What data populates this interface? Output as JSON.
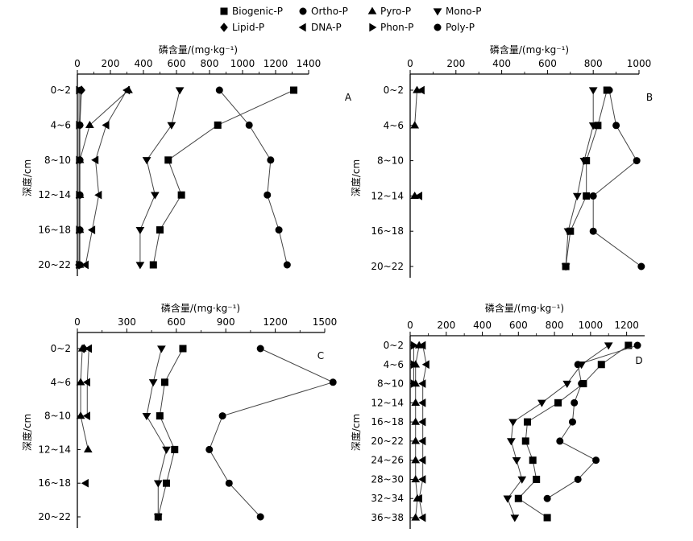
{
  "legend": [
    {
      "name": "Biogenic-P",
      "marker": "square"
    },
    {
      "name": "Ortho-P",
      "marker": "circle"
    },
    {
      "name": "Pyro-P",
      "marker": "triangle-up"
    },
    {
      "name": "Mono-P",
      "marker": "triangle-down"
    },
    {
      "name": "Lipid-P",
      "marker": "diamond"
    },
    {
      "name": "DNA-P",
      "marker": "triangle-left"
    },
    {
      "name": "Phon-P",
      "marker": "triangle-right"
    },
    {
      "name": "Poly-P",
      "marker": "circle"
    }
  ],
  "chart_data": [
    {
      "type": "line",
      "panel": "A",
      "xlabel": "磷含量/(mg·kg⁻¹)",
      "ylabel": "深度/cm",
      "xlim": [
        0,
        1400
      ],
      "xticks": [
        0,
        200,
        400,
        600,
        800,
        1000,
        1200,
        1400
      ],
      "categories": [
        "0~2",
        "4~6",
        "8~10",
        "12~14",
        "16~18",
        "20~22"
      ],
      "series": [
        {
          "name": "Biogenic-P",
          "marker": "square",
          "values": [
            1310,
            850,
            550,
            630,
            500,
            460
          ]
        },
        {
          "name": "Ortho-P",
          "marker": "circle",
          "values": [
            860,
            1040,
            1170,
            1150,
            1220,
            1270
          ]
        },
        {
          "name": "Pyro-P",
          "marker": "triangle-up",
          "values": [
            310,
            75,
            15,
            15,
            15,
            15
          ]
        },
        {
          "name": "Mono-P",
          "marker": "triangle-down",
          "values": [
            620,
            570,
            420,
            470,
            380,
            380
          ]
        },
        {
          "name": "Lipid-P",
          "marker": "diamond",
          "values": [
            25,
            15,
            15,
            15,
            15,
            10
          ]
        },
        {
          "name": "DNA-P",
          "marker": "triangle-left",
          "values": [
            300,
            175,
            110,
            130,
            90,
            50
          ]
        },
        {
          "name": "Phon-P",
          "marker": "triangle-right",
          "values": [
            10,
            10,
            10,
            10,
            10,
            10
          ]
        },
        {
          "name": "Poly-P",
          "marker": "circle",
          "values": [
            20,
            15,
            15,
            15,
            15,
            15
          ]
        }
      ]
    },
    {
      "type": "line",
      "panel": "B",
      "xlabel": "磷含量/(mg·kg⁻¹)",
      "ylabel": "深度/cm",
      "xlim": [
        0,
        1000
      ],
      "xticks": [
        0,
        200,
        400,
        600,
        800,
        1000
      ],
      "categories": [
        "0~2",
        "4~6",
        "8~10",
        "12~14",
        "16~18",
        "20~22"
      ],
      "series": [
        {
          "name": "Biogenic-P",
          "marker": "square",
          "values": [
            860,
            820,
            770,
            770,
            700,
            680
          ]
        },
        {
          "name": "Ortho-P",
          "marker": "circle",
          "values": [
            870,
            900,
            990,
            800,
            800,
            1010
          ]
        },
        {
          "name": "Pyro-P",
          "marker": "triangle-up",
          "values": [
            30,
            20,
            null,
            20,
            null,
            null
          ]
        },
        {
          "name": "Mono-P",
          "marker": "triangle-down",
          "values": [
            800,
            800,
            760,
            730,
            690,
            680
          ]
        },
        {
          "name": "DNA-P",
          "marker": "triangle-left",
          "values": [
            50,
            null,
            null,
            40,
            null,
            null
          ]
        }
      ]
    },
    {
      "type": "line",
      "panel": "C",
      "xlabel": "磷含量/(mg·kg⁻¹)",
      "ylabel": "深度/cm",
      "xlim": [
        0,
        1500
      ],
      "xticks": [
        0,
        300,
        600,
        900,
        1200,
        1500
      ],
      "categories": [
        "0~2",
        "4~6",
        "8~10",
        "12~14",
        "16~18",
        "20~22"
      ],
      "series": [
        {
          "name": "Biogenic-P",
          "marker": "square",
          "values": [
            640,
            530,
            500,
            590,
            540,
            490
          ]
        },
        {
          "name": "Ortho-P",
          "marker": "circle",
          "values": [
            1110,
            1550,
            880,
            800,
            920,
            1110
          ]
        },
        {
          "name": "Pyro-P",
          "marker": "triangle-up",
          "values": [
            30,
            20,
            20,
            65,
            null,
            null
          ]
        },
        {
          "name": "Mono-P",
          "marker": "triangle-down",
          "values": [
            510,
            460,
            420,
            540,
            490,
            490
          ]
        },
        {
          "name": "Lipid-P",
          "marker": "diamond",
          "values": [
            40,
            null,
            null,
            null,
            null,
            null
          ]
        },
        {
          "name": "DNA-P",
          "marker": "triangle-left",
          "values": [
            70,
            60,
            60,
            null,
            50,
            null
          ]
        }
      ]
    },
    {
      "type": "line",
      "panel": "D",
      "xlabel": "磷含量/(mg·kg⁻¹)",
      "ylabel": "深度/cm",
      "xlim": [
        0,
        1300
      ],
      "xticks": [
        0,
        200,
        400,
        600,
        800,
        1000,
        1200
      ],
      "categories": [
        "0~2",
        "4~6",
        "8~10",
        "12~14",
        "16~18",
        "20~22",
        "24~26",
        "28~30",
        "32~34",
        "36~38"
      ],
      "series": [
        {
          "name": "Biogenic-P",
          "marker": "square",
          "values": [
            1210,
            1060,
            960,
            820,
            650,
            640,
            680,
            700,
            600,
            760
          ]
        },
        {
          "name": "Ortho-P",
          "marker": "circle",
          "values": [
            1260,
            930,
            950,
            910,
            900,
            830,
            1030,
            930,
            760,
            null
          ]
        },
        {
          "name": "Pyro-P",
          "marker": "triangle-up",
          "values": [
            50,
            30,
            30,
            30,
            30,
            30,
            30,
            30,
            40,
            30
          ]
        },
        {
          "name": "Mono-P",
          "marker": "triangle-down",
          "values": [
            1100,
            950,
            870,
            730,
            570,
            560,
            590,
            620,
            540,
            580
          ]
        },
        {
          "name": "DNA-P",
          "marker": "triangle-left",
          "values": [
            70,
            90,
            70,
            70,
            70,
            70,
            70,
            70,
            50,
            70
          ]
        },
        {
          "name": "Phon-P",
          "marker": "triangle-right",
          "values": [
            20,
            20,
            20,
            null,
            null,
            null,
            null,
            null,
            null,
            null
          ]
        }
      ]
    }
  ]
}
